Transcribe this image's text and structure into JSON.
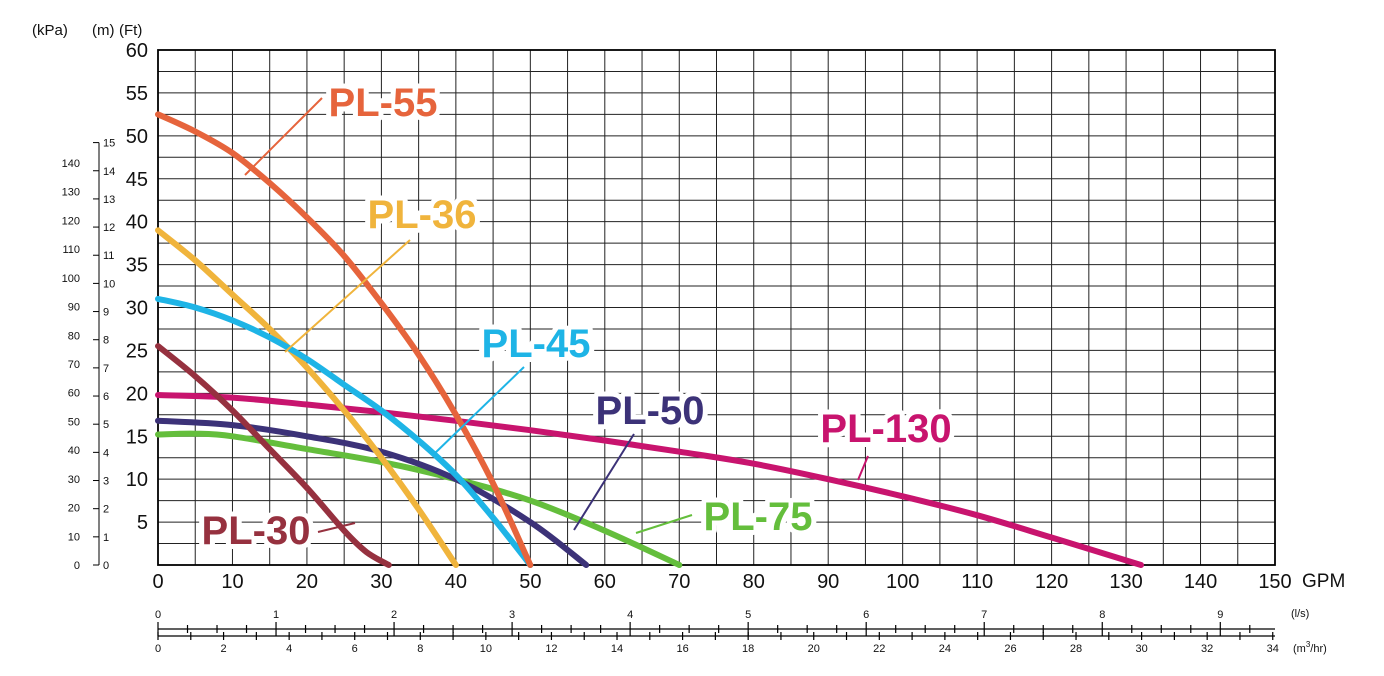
{
  "units": {
    "kpa": "(kPa)",
    "m": "(m)",
    "ft": "(Ft)",
    "gpm": "GPM",
    "ls": "(l/s)",
    "m3hr_prefix": "(m",
    "m3hr_sup": "3",
    "m3hr_suffix": "/hr)"
  },
  "chart_data": {
    "type": "line",
    "xlabel": "GPM",
    "ylabel": "(Ft)",
    "xlim": [
      0,
      150
    ],
    "ylim": [
      0,
      60
    ],
    "grid": true,
    "x_ticks": [
      "0",
      "10",
      "20",
      "30",
      "40",
      "50",
      "60",
      "70",
      "80",
      "90",
      "100",
      "110",
      "120",
      "130",
      "140",
      "150"
    ],
    "ft_ticks": [
      "5",
      "10",
      "15",
      "20",
      "25",
      "30",
      "35",
      "40",
      "45",
      "50",
      "55",
      "60"
    ],
    "m_ticks": [
      "0",
      "1",
      "2",
      "3",
      "4",
      "5",
      "6",
      "7",
      "8",
      "9",
      "10",
      "11",
      "12",
      "13",
      "14",
      "15"
    ],
    "kpa_ticks": [
      "0",
      "10",
      "20",
      "30",
      "40",
      "50",
      "60",
      "70",
      "80",
      "90",
      "100",
      "110",
      "120",
      "130",
      "140"
    ],
    "ls_ticks": [
      "0",
      "1",
      "2",
      "3",
      "4",
      "5",
      "6",
      "7",
      "8",
      "9"
    ],
    "m3hr_ticks": [
      "0",
      "2",
      "4",
      "6",
      "8",
      "10",
      "12",
      "14",
      "16",
      "18",
      "20",
      "22",
      "24",
      "26",
      "28",
      "30",
      "32",
      "34"
    ],
    "series": [
      {
        "name": "PL-30",
        "color": "#96313f",
        "x": [
          0,
          5,
          10,
          15,
          20,
          25,
          28,
          31
        ],
        "y": [
          25.5,
          22,
          18,
          13.5,
          9,
          4,
          1.5,
          0
        ]
      },
      {
        "name": "PL-36",
        "color": "#f0b43c",
        "x": [
          0,
          5,
          10,
          15,
          20,
          25,
          30,
          35,
          40
        ],
        "y": [
          39,
          35.5,
          31.5,
          27.5,
          23,
          18,
          12.5,
          6.5,
          0
        ]
      },
      {
        "name": "PL-45",
        "color": "#1eb4e6",
        "x": [
          0,
          5,
          10,
          15,
          20,
          25,
          30,
          35,
          40,
          45,
          50
        ],
        "y": [
          31,
          30,
          28.5,
          26.5,
          24,
          21,
          18,
          14.5,
          10.5,
          5.5,
          0
        ]
      },
      {
        "name": "PL-50",
        "color": "#3c3278",
        "x": [
          0,
          10,
          20,
          30,
          40,
          50,
          57.5
        ],
        "y": [
          16.8,
          16.3,
          15,
          13.2,
          10,
          5,
          0
        ]
      },
      {
        "name": "PL-55",
        "color": "#e6643c",
        "x": [
          0,
          5,
          10,
          15,
          20,
          25,
          30,
          35,
          40,
          45,
          50
        ],
        "y": [
          52.5,
          50.5,
          48,
          44.5,
          40.5,
          36,
          30.5,
          24.5,
          17.5,
          9.5,
          0
        ]
      },
      {
        "name": "PL-75",
        "color": "#64be3c",
        "x": [
          0,
          5,
          10,
          20,
          30,
          40,
          50,
          60,
          70
        ],
        "y": [
          15.2,
          15.3,
          15,
          13.5,
          12,
          10,
          7.5,
          4,
          0
        ]
      },
      {
        "name": "PL-130",
        "color": "#c8146e",
        "x": [
          0,
          10,
          20,
          30,
          40,
          50,
          60,
          70,
          80,
          90,
          100,
          110,
          120,
          132
        ],
        "y": [
          19.8,
          19.5,
          18.7,
          17.8,
          16.8,
          15.7,
          14.5,
          13.2,
          11.8,
          10,
          8,
          5.8,
          3.2,
          0
        ]
      }
    ]
  }
}
